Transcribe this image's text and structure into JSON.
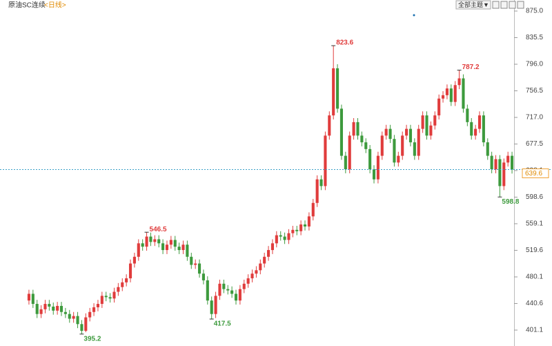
{
  "header": {
    "title": "原油SC连续",
    "period": "<日线>",
    "theme_button": "全部主题▼"
  },
  "chart_data": {
    "type": "candlestick",
    "open": [
      445,
      455,
      440,
      425,
      432,
      440,
      436,
      430,
      437,
      428,
      425,
      418,
      422,
      410,
      400,
      420,
      428,
      435,
      440,
      452,
      450,
      448,
      458,
      465,
      472,
      478,
      500,
      510,
      530,
      525,
      540,
      532,
      536,
      530,
      520,
      528,
      535,
      525,
      520,
      528,
      510,
      498,
      500,
      485,
      475,
      445,
      425,
      452,
      470,
      462,
      460,
      455,
      445,
      462,
      470,
      478,
      485,
      490,
      500,
      510,
      520,
      530,
      542,
      540,
      535,
      545,
      550,
      548,
      558,
      555,
      570,
      590,
      625,
      615,
      690,
      720,
      790,
      730,
      660,
      640,
      690,
      710,
      690,
      680,
      670,
      640,
      625,
      660,
      690,
      700,
      685,
      650,
      660,
      690,
      700,
      680,
      660,
      700,
      720,
      690,
      705,
      720,
      745,
      750,
      760,
      740,
      765,
      775,
      730,
      710,
      690,
      700,
      720,
      680,
      660,
      640,
      655,
      615,
      650,
      660
    ],
    "high": [
      461,
      461,
      446,
      438,
      446,
      446,
      442,
      443,
      443,
      434,
      431,
      428,
      428,
      416,
      426,
      434,
      441,
      446,
      458,
      458,
      456,
      464,
      471,
      478,
      484,
      506,
      516,
      536,
      536,
      546.5,
      546,
      542,
      542,
      536,
      534,
      541,
      541,
      531,
      534,
      534,
      516,
      506,
      506,
      491,
      481,
      451,
      458,
      476,
      476,
      468,
      466,
      461,
      468,
      476,
      484,
      491,
      496,
      506,
      516,
      526,
      536,
      548,
      548,
      546,
      551,
      556,
      556,
      564,
      564,
      576,
      596,
      631,
      631,
      696,
      726,
      823.6,
      796,
      736,
      666,
      696,
      716,
      716,
      696,
      686,
      676,
      646,
      666,
      696,
      706,
      706,
      691,
      666,
      696,
      706,
      706,
      686,
      706,
      726,
      726,
      711,
      726,
      751,
      756,
      766,
      766,
      771,
      787.2,
      781,
      736,
      716,
      706,
      726,
      726,
      686,
      666,
      661,
      661,
      656,
      666,
      666
    ],
    "low": [
      439,
      434,
      419,
      419,
      426,
      430,
      424,
      424,
      422,
      419,
      412,
      412,
      404,
      395.2,
      398,
      414,
      422,
      429,
      434,
      444,
      442,
      442,
      452,
      459,
      466,
      472,
      494,
      504,
      519,
      519,
      526,
      526,
      524,
      514,
      514,
      522,
      519,
      514,
      514,
      504,
      492,
      492,
      479,
      469,
      439,
      417.5,
      419,
      446,
      456,
      454,
      449,
      439,
      439,
      456,
      464,
      472,
      479,
      484,
      494,
      504,
      514,
      524,
      534,
      529,
      529,
      539,
      542,
      542,
      549,
      549,
      564,
      584,
      609,
      609,
      684,
      714,
      724,
      654,
      634,
      634,
      684,
      684,
      674,
      664,
      634,
      619,
      619,
      654,
      684,
      679,
      644,
      644,
      654,
      684,
      674,
      654,
      654,
      694,
      684,
      684,
      699,
      714,
      739,
      744,
      734,
      734,
      759,
      724,
      704,
      684,
      684,
      694,
      674,
      654,
      634,
      634,
      598.8,
      609,
      644,
      633.6
    ],
    "close": [
      455,
      440,
      425,
      432,
      440,
      436,
      430,
      437,
      428,
      425,
      418,
      422,
      410,
      400,
      420,
      428,
      435,
      440,
      452,
      450,
      448,
      458,
      465,
      472,
      478,
      500,
      510,
      530,
      525,
      540,
      532,
      536,
      530,
      520,
      528,
      535,
      525,
      520,
      528,
      510,
      498,
      500,
      485,
      475,
      445,
      425,
      452,
      470,
      462,
      460,
      455,
      445,
      462,
      470,
      478,
      485,
      490,
      500,
      510,
      520,
      530,
      542,
      540,
      535,
      545,
      550,
      548,
      558,
      555,
      570,
      590,
      625,
      615,
      690,
      720,
      790,
      730,
      660,
      640,
      690,
      710,
      690,
      680,
      670,
      640,
      625,
      660,
      690,
      700,
      685,
      650,
      660,
      690,
      700,
      680,
      660,
      700,
      720,
      690,
      705,
      720,
      745,
      750,
      760,
      740,
      765,
      775,
      730,
      710,
      690,
      700,
      720,
      680,
      660,
      640,
      655,
      615,
      650,
      660,
      639.6
    ],
    "high_labels": [
      null,
      null,
      null,
      null,
      null,
      null,
      null,
      null,
      null,
      null,
      null,
      null,
      null,
      null,
      null,
      null,
      null,
      null,
      null,
      null,
      null,
      null,
      null,
      null,
      null,
      null,
      null,
      null,
      null,
      "546.5",
      null,
      null,
      null,
      null,
      null,
      null,
      null,
      null,
      null,
      null,
      null,
      null,
      null,
      null,
      null,
      null,
      null,
      null,
      null,
      null,
      null,
      null,
      null,
      null,
      null,
      null,
      null,
      null,
      null,
      null,
      null,
      null,
      null,
      null,
      null,
      null,
      null,
      null,
      null,
      null,
      null,
      null,
      null,
      null,
      null,
      "823.6",
      null,
      null,
      null,
      null,
      null,
      null,
      null,
      null,
      null,
      null,
      null,
      null,
      null,
      null,
      null,
      null,
      null,
      null,
      null,
      null,
      null,
      null,
      null,
      null,
      null,
      null,
      null,
      null,
      null,
      null,
      "787.2",
      null,
      null,
      null,
      null,
      null,
      null,
      null,
      null,
      null,
      null,
      null,
      null,
      null
    ],
    "low_labels": [
      null,
      null,
      null,
      null,
      null,
      null,
      null,
      null,
      null,
      null,
      null,
      null,
      null,
      "395.2",
      null,
      null,
      null,
      null,
      null,
      null,
      null,
      null,
      null,
      null,
      null,
      null,
      null,
      null,
      null,
      null,
      null,
      null,
      null,
      null,
      null,
      null,
      null,
      null,
      null,
      null,
      null,
      null,
      null,
      null,
      null,
      "417.5",
      null,
      null,
      null,
      null,
      null,
      null,
      null,
      null,
      null,
      null,
      null,
      null,
      null,
      null,
      null,
      null,
      null,
      null,
      null,
      null,
      null,
      null,
      null,
      null,
      null,
      null,
      null,
      null,
      null,
      null,
      null,
      null,
      null,
      null,
      null,
      null,
      null,
      null,
      null,
      null,
      null,
      null,
      null,
      null,
      null,
      null,
      null,
      null,
      null,
      null,
      null,
      null,
      null,
      null,
      null,
      null,
      null,
      null,
      null,
      null,
      null,
      null,
      null,
      null,
      null,
      null,
      null,
      null,
      null,
      null,
      "598.8",
      null,
      null,
      null
    ],
    "up_color": "#e03c3c",
    "down_color": "#3d9a3d",
    "ylim": [
      378.5,
      875
    ],
    "yticks": [
      401.1,
      440.6,
      480.1,
      519.6,
      559.1,
      598.6,
      638.1,
      677.5,
      {
        "value": 717,
        "label": "717.0"
      },
      756.5,
      {
        "value": 796,
        "label": "796.0"
      },
      835.5,
      {
        "value": 875,
        "label": "875.0"
      }
    ]
  }
}
